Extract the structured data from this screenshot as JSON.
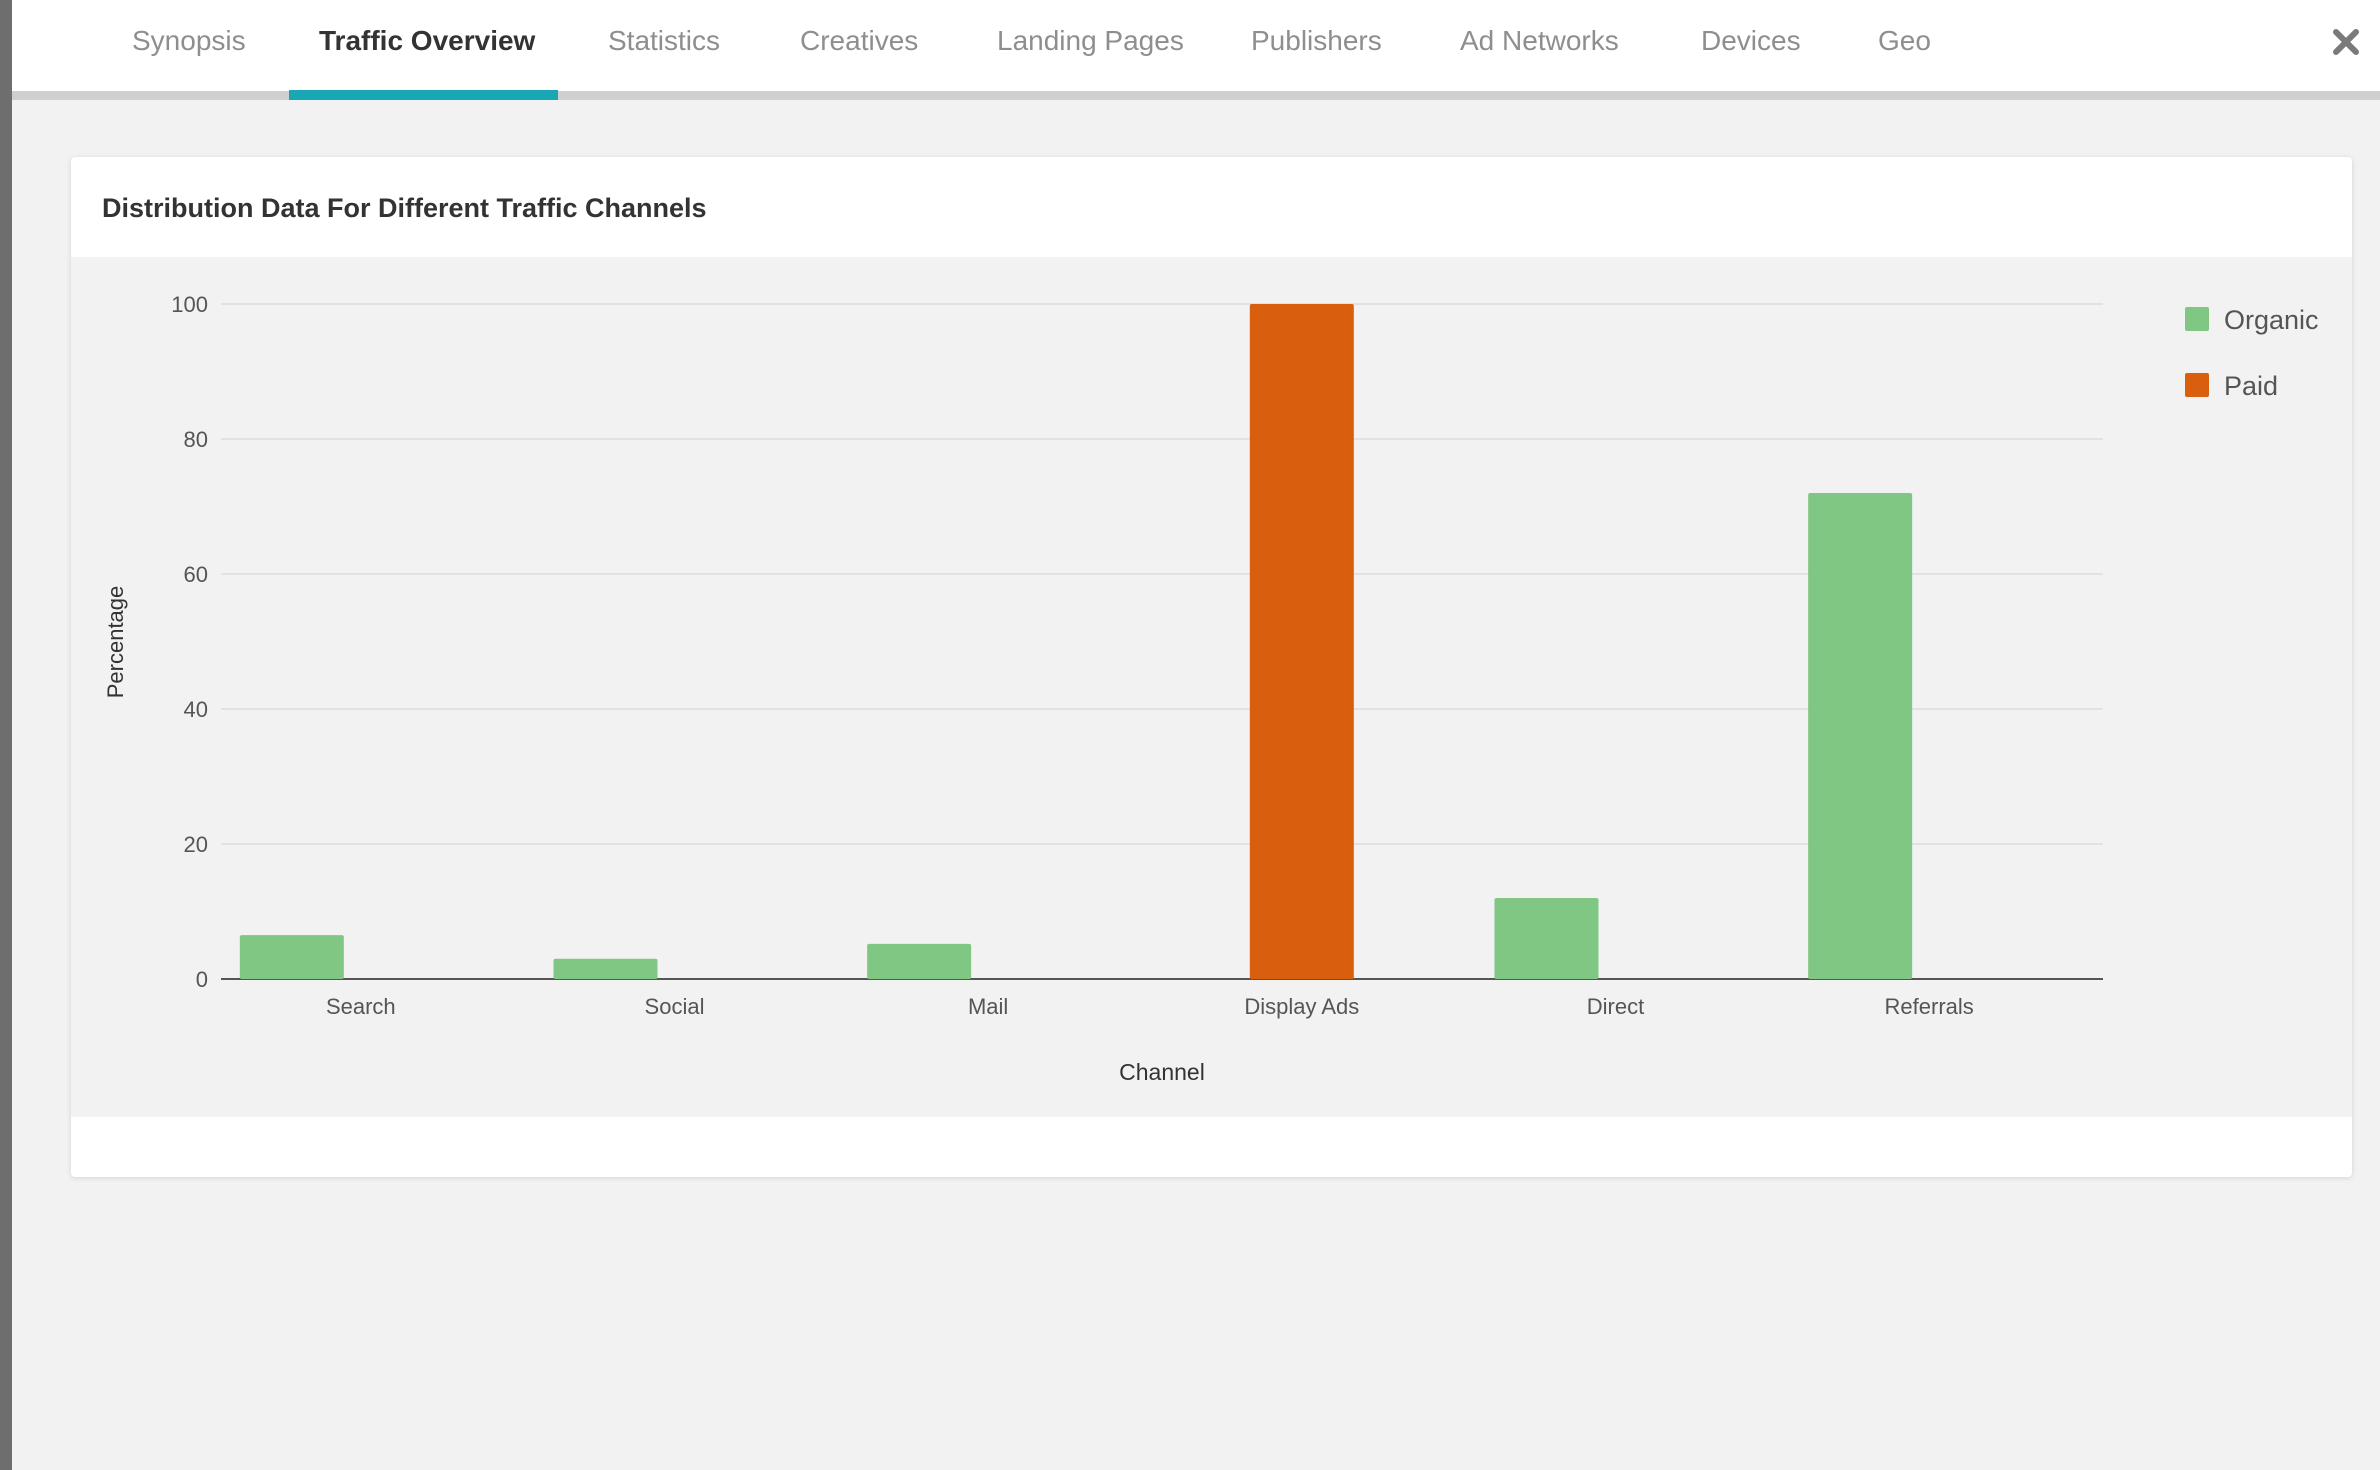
{
  "tabs": [
    {
      "label": "Synopsis",
      "active": false
    },
    {
      "label": "Traffic Overview",
      "active": true
    },
    {
      "label": "Statistics",
      "active": false
    },
    {
      "label": "Creatives",
      "active": false
    },
    {
      "label": "Landing Pages",
      "active": false
    },
    {
      "label": "Publishers",
      "active": false
    },
    {
      "label": "Ad Networks",
      "active": false
    },
    {
      "label": "Devices",
      "active": false
    },
    {
      "label": "Geo",
      "active": false
    }
  ],
  "close_icon": "close-icon",
  "card": {
    "title": "Distribution Data For Different Traffic Channels"
  },
  "colors": {
    "accent": "#19a7b3",
    "organic": "#81c784",
    "paid": "#d95f0e"
  },
  "chart_data": {
    "type": "bar",
    "title": "Distribution Data For Different Traffic Channels",
    "xlabel": "Channel",
    "ylabel": "Percentage",
    "ylim": [
      0,
      100
    ],
    "yticks": [
      0,
      20,
      40,
      60,
      80,
      100
    ],
    "categories": [
      "Search",
      "Social",
      "Mail",
      "Display Ads",
      "Direct",
      "Referrals"
    ],
    "series": [
      {
        "name": "Organic",
        "color": "#81c784",
        "values": [
          6.5,
          3,
          5.2,
          0,
          12,
          72
        ]
      },
      {
        "name": "Paid",
        "color": "#d95f0e",
        "values": [
          0,
          0,
          0,
          100,
          0,
          0
        ]
      }
    ],
    "legend_position": "top-right",
    "grid": true
  }
}
